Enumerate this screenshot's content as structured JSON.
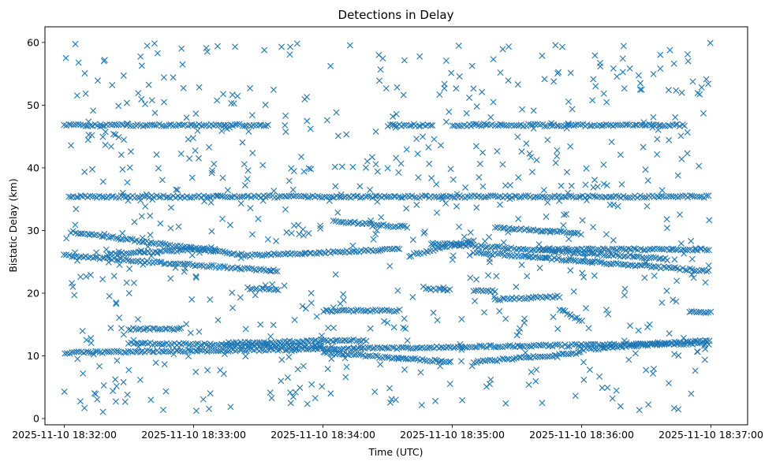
{
  "chart_data": {
    "type": "scatter",
    "title": "Detections in Delay",
    "xlabel": "Time (UTC)",
    "ylabel": "Bistatic Delay (km)",
    "x_unit": "datetime (UTC)",
    "xlim": [
      "2025-11-10 18:31:51",
      "2025-11-10 18:37:17"
    ],
    "ylim": [
      -1.0,
      62.5
    ],
    "xticks": [
      "2025-11-10 18:32:00",
      "2025-11-10 18:33:00",
      "2025-11-10 18:34:00",
      "2025-11-10 18:35:00",
      "2025-11-10 18:36:00",
      "2025-11-10 18:37:00"
    ],
    "yticks": [
      0,
      10,
      20,
      30,
      40,
      50,
      60
    ],
    "grid": false,
    "legend": "none",
    "marker": "x",
    "color": "#1f77b4",
    "series": [
      {
        "style": "tracks",
        "tracks": [
          {
            "t0": "2025-11-10 18:32:00",
            "t1": "2025-11-10 18:33:35",
            "y0": 46.8,
            "y1": 46.8
          },
          {
            "t0": "2025-11-10 18:34:30",
            "t1": "2025-11-10 18:34:52",
            "y0": 46.8,
            "y1": 46.8
          },
          {
            "t0": "2025-11-10 18:35:00",
            "t1": "2025-11-10 18:36:48",
            "y0": 46.8,
            "y1": 46.8
          },
          {
            "t0": "2025-11-10 18:32:02",
            "t1": "2025-11-10 18:37:00",
            "y0": 35.4,
            "y1": 35.4
          },
          {
            "t0": "2025-11-10 18:32:03",
            "t1": "2025-11-10 18:33:25",
            "y0": 29.8,
            "y1": 26.0
          },
          {
            "t0": "2025-11-10 18:32:00",
            "t1": "2025-11-10 18:33:40",
            "y0": 26.0,
            "y1": 23.5
          },
          {
            "t0": "2025-11-10 18:32:20",
            "t1": "2025-11-10 18:33:10",
            "y0": 26.2,
            "y1": 27.2
          },
          {
            "t0": "2025-11-10 18:33:25",
            "t1": "2025-11-10 18:34:35",
            "y0": 26.0,
            "y1": 27.0
          },
          {
            "t0": "2025-11-10 18:34:05",
            "t1": "2025-11-10 18:34:40",
            "y0": 31.5,
            "y1": 30.5
          },
          {
            "t0": "2025-11-10 18:34:40",
            "t1": "2025-11-10 18:35:10",
            "y0": 26.0,
            "y1": 28.5
          },
          {
            "t0": "2025-11-10 18:34:50",
            "t1": "2025-11-10 18:36:40",
            "y0": 28.0,
            "y1": 25.5
          },
          {
            "t0": "2025-11-10 18:35:10",
            "t1": "2025-11-10 18:37:00",
            "y0": 26.5,
            "y1": 23.5
          },
          {
            "t0": "2025-11-10 18:35:40",
            "t1": "2025-11-10 18:37:00",
            "y0": 27.0,
            "y1": 27.0
          },
          {
            "t0": "2025-11-10 18:35:20",
            "t1": "2025-11-10 18:36:00",
            "y0": 30.5,
            "y1": 29.5
          },
          {
            "t0": "2025-11-10 18:32:00",
            "t1": "2025-11-10 18:37:00",
            "y0": 10.5,
            "y1": 12.0
          },
          {
            "t0": "2025-11-10 18:32:30",
            "t1": "2025-11-10 18:34:00",
            "y0": 12.0,
            "y1": 11.5
          },
          {
            "t0": "2025-11-10 18:34:00",
            "t1": "2025-11-10 18:35:00",
            "y0": 10.5,
            "y1": 9.0
          },
          {
            "t0": "2025-11-10 18:35:10",
            "t1": "2025-11-10 18:36:00",
            "y0": 9.0,
            "y1": 10.5
          },
          {
            "t0": "2025-11-10 18:36:00",
            "t1": "2025-11-10 18:37:00",
            "y0": 11.0,
            "y1": 12.5
          },
          {
            "t0": "2025-11-10 18:33:15",
            "t1": "2025-11-10 18:34:20",
            "y0": 12.0,
            "y1": 12.5
          },
          {
            "t0": "2025-11-10 18:35:20",
            "t1": "2025-11-10 18:35:50",
            "y0": 19.0,
            "y1": 19.5
          },
          {
            "t0": "2025-11-10 18:35:50",
            "t1": "2025-11-10 18:36:00",
            "y0": 17.5,
            "y1": 15.5
          },
          {
            "t0": "2025-11-10 18:34:00",
            "t1": "2025-11-10 18:34:35",
            "y0": 17.2,
            "y1": 17.2
          },
          {
            "t0": "2025-11-10 18:36:50",
            "t1": "2025-11-10 18:37:00",
            "y0": 17.0,
            "y1": 17.0
          },
          {
            "t0": "2025-11-10 18:33:25",
            "t1": "2025-11-10 18:33:40",
            "y0": 20.8,
            "y1": 20.5
          },
          {
            "t0": "2025-11-10 18:34:48",
            "t1": "2025-11-10 18:35:00",
            "y0": 20.7,
            "y1": 20.5
          },
          {
            "t0": "2025-11-10 18:35:10",
            "t1": "2025-11-10 18:35:20",
            "y0": 20.5,
            "y1": 20.3
          },
          {
            "t0": "2025-11-10 18:32:30",
            "t1": "2025-11-10 18:32:55",
            "y0": 14.3,
            "y1": 14.3
          }
        ]
      },
      {
        "style": "scatter-cloud",
        "x_range": [
          "2025-11-10 18:32:00",
          "2025-11-10 18:37:00"
        ],
        "y_range": [
          1.0,
          60.0
        ]
      }
    ]
  }
}
